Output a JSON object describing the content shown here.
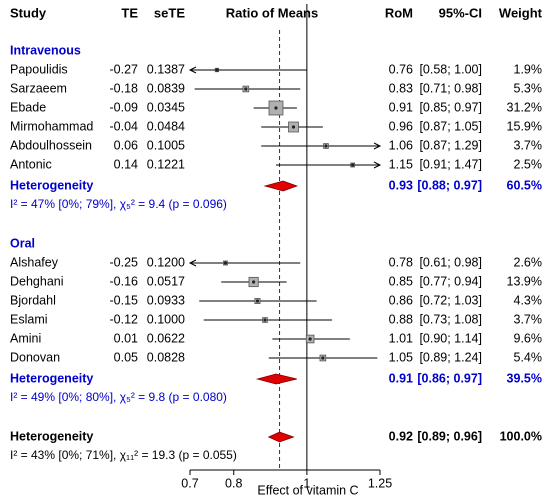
{
  "chart_data": {
    "type": "forest",
    "title": "Ratio of Means",
    "columns": [
      "Study",
      "TE",
      "seTE",
      "RoM",
      "95%-CI",
      "Weight"
    ],
    "xlabel": "Effect of vitamin C",
    "log_x": true,
    "xlim": [
      0.7,
      1.25
    ],
    "xticks": [
      0.7,
      0.8,
      1,
      1.25
    ],
    "reference": 1,
    "box_color": "#b0b0b0",
    "diamond_color": "#e00000",
    "group_color": "#0000cc",
    "groups": [
      {
        "name": "Intravenous",
        "studies": [
          {
            "study": "Papoulidis",
            "TE": -0.27,
            "seTE": 0.1387,
            "rom": 0.76,
            "lower": 0.58,
            "upper": 1.0,
            "ci_label": "[0.58; 1.00]",
            "weight": 1.9,
            "weight_label": "1.9%"
          },
          {
            "study": "Sarzaeem",
            "TE": -0.18,
            "seTE": 0.0839,
            "rom": 0.83,
            "lower": 0.71,
            "upper": 0.98,
            "ci_label": "[0.71; 0.98]",
            "weight": 5.3,
            "weight_label": "5.3%"
          },
          {
            "study": "Ebade",
            "TE": -0.09,
            "seTE": 0.0345,
            "rom": 0.91,
            "lower": 0.85,
            "upper": 0.97,
            "ci_label": "[0.85; 0.97]",
            "weight": 31.2,
            "weight_label": "31.2%"
          },
          {
            "study": "Mirmohammad",
            "TE": -0.04,
            "seTE": 0.0484,
            "rom": 0.96,
            "lower": 0.87,
            "upper": 1.05,
            "ci_label": "[0.87; 1.05]",
            "weight": 15.9,
            "weight_label": "15.9%"
          },
          {
            "study": "Abdoulhossein",
            "TE": 0.06,
            "seTE": 0.1005,
            "rom": 1.06,
            "lower": 0.87,
            "upper": 1.29,
            "ci_label": "[0.87; 1.29]",
            "weight": 3.7,
            "weight_label": "3.7%"
          },
          {
            "study": "Antonic",
            "TE": 0.14,
            "seTE": 0.1221,
            "rom": 1.15,
            "lower": 0.91,
            "upper": 1.47,
            "ci_label": "[0.91; 1.47]",
            "weight": 2.5,
            "weight_label": "2.5%"
          }
        ],
        "pooled": {
          "name": "Heterogeneity",
          "rom": 0.93,
          "lower": 0.88,
          "upper": 0.97,
          "ci_label": "[0.88; 0.97]",
          "weight": 60.5,
          "weight_label": "60.5%",
          "stats": "I² = 47% [0%; 79%], χ₅² = 9.4 (p = 0.096)"
        }
      },
      {
        "name": "Oral",
        "studies": [
          {
            "study": "Alshafey",
            "TE": -0.25,
            "seTE": 0.12,
            "seTE_label": "0.1200",
            "rom": 0.78,
            "lower": 0.61,
            "upper": 0.98,
            "ci_label": "[0.61; 0.98]",
            "weight": 2.6,
            "weight_label": "2.6%"
          },
          {
            "study": "Dehghani",
            "TE": -0.16,
            "seTE": 0.0517,
            "rom": 0.85,
            "lower": 0.77,
            "upper": 0.94,
            "ci_label": "[0.77; 0.94]",
            "weight": 13.9,
            "weight_label": "13.9%"
          },
          {
            "study": "Bjordahl",
            "TE": -0.15,
            "seTE": 0.0933,
            "rom": 0.86,
            "lower": 0.72,
            "upper": 1.03,
            "ci_label": "[0.72; 1.03]",
            "weight": 4.3,
            "weight_label": "4.3%"
          },
          {
            "study": "Eslami",
            "TE": -0.12,
            "seTE": 0.1,
            "seTE_label": "0.1000",
            "rom": 0.88,
            "lower": 0.73,
            "upper": 1.08,
            "ci_label": "[0.73; 1.08]",
            "weight": 3.7,
            "weight_label": "3.7%"
          },
          {
            "study": "Amini",
            "TE": 0.01,
            "seTE": 0.0622,
            "rom": 1.01,
            "lower": 0.9,
            "upper": 1.14,
            "ci_label": "[0.90; 1.14]",
            "weight": 9.6,
            "weight_label": "9.6%"
          },
          {
            "study": "Donovan",
            "TE": 0.05,
            "seTE": 0.0828,
            "rom": 1.05,
            "lower": 0.89,
            "upper": 1.24,
            "ci_label": "[0.89; 1.24]",
            "weight": 5.4,
            "weight_label": "5.4%"
          }
        ],
        "pooled": {
          "name": "Heterogeneity",
          "rom": 0.91,
          "lower": 0.86,
          "upper": 0.97,
          "ci_label": "[0.86; 0.97]",
          "weight": 39.5,
          "weight_label": "39.5%",
          "stats": "I² = 49% [0%; 80%], χ₅² = 9.8 (p = 0.080)"
        }
      }
    ],
    "overall": {
      "name": "Heterogeneity",
      "rom": 0.92,
      "lower": 0.89,
      "upper": 0.96,
      "ci_label": "[0.89; 0.96]",
      "weight": 100.0,
      "weight_label": "100.0%",
      "stats": "I² = 43% [0%; 71%], χ₁₁² = 19.3 (p = 0.055)"
    }
  }
}
